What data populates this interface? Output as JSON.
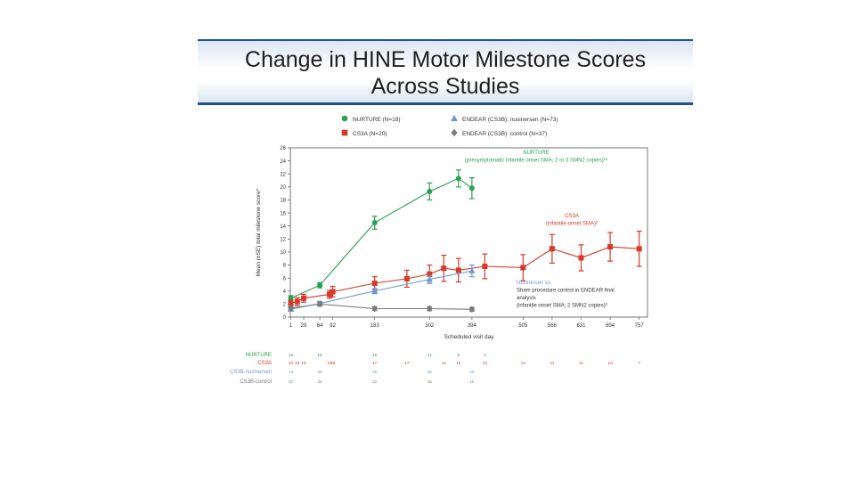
{
  "slide": {
    "title_line1": "Change in HINE Motor Milestone Scores",
    "title_line2": "Across Studies"
  },
  "colors": {
    "NURTURE": "#2aa152",
    "CS3A": "#d63a2a",
    "nusinersen": "#6a9bd0",
    "control": "#7a7a7a",
    "title_rule": "#1d4f9a"
  },
  "chart_data": {
    "type": "line",
    "ylabel": "Mean (±SE) total milestone score*",
    "xlabel": "Scheduled visit day",
    "ylim": [
      0,
      26
    ],
    "yticks": [
      0,
      2,
      4,
      6,
      8,
      10,
      12,
      14,
      16,
      18,
      20,
      22,
      24,
      26
    ],
    "xlim": [
      0,
      775
    ],
    "xticks": [
      1,
      29,
      64,
      92,
      183,
      302,
      394,
      505,
      568,
      631,
      694,
      757
    ],
    "legend": [
      {
        "key": "NURTURE",
        "label": "NURTURE (N=18)",
        "marker": "circle"
      },
      {
        "key": "CS3A",
        "label": "CS3A (N=20)",
        "marker": "square"
      },
      {
        "key": "nusinersen",
        "label": "ENDEAR (CS3B): nusinersen (N=73)",
        "marker": "triangle"
      },
      {
        "key": "control",
        "label": "ENDEAR (CS3B): control (N=37)",
        "marker": "diamond"
      }
    ],
    "series": [
      {
        "key": "NURTURE",
        "name": "NURTURE (N=18)",
        "marker": "circle",
        "points": [
          [
            1,
            2.9,
            0.4
          ],
          [
            64,
            4.9,
            0.4
          ],
          [
            183,
            14.5,
            1.0
          ],
          [
            302,
            19.3,
            1.3
          ],
          [
            365,
            21.3,
            1.3
          ],
          [
            394,
            19.8,
            1.6
          ]
        ]
      },
      {
        "key": "CS3A",
        "name": "CS3A (N=20)",
        "marker": "square",
        "points": [
          [
            1,
            2.1,
            0.5
          ],
          [
            15,
            2.4,
            0.6
          ],
          [
            29,
            2.9,
            0.6
          ],
          [
            85,
            3.5,
            0.6
          ],
          [
            92,
            3.9,
            0.8
          ],
          [
            183,
            5.2,
            1.0
          ],
          [
            253,
            5.9,
            1.3
          ],
          [
            302,
            6.6,
            1.4
          ],
          [
            333,
            7.5,
            2.0
          ],
          [
            365,
            7.2,
            1.8
          ],
          [
            422,
            7.8,
            1.9
          ],
          [
            505,
            7.6,
            2.0
          ],
          [
            568,
            10.5,
            2.2
          ],
          [
            631,
            9.1,
            2.0
          ],
          [
            694,
            10.8,
            2.2
          ],
          [
            757,
            10.5,
            2.7
          ]
        ]
      },
      {
        "key": "nusinersen",
        "name": "ENDEAR (CS3B): nusinersen (N=73)",
        "marker": "triangle",
        "points": [
          [
            1,
            1.2,
            0.2
          ],
          [
            64,
            2.1,
            0.3
          ],
          [
            183,
            4.0,
            0.4
          ],
          [
            302,
            5.8,
            0.6
          ],
          [
            394,
            7.1,
            0.9
          ]
        ]
      },
      {
        "key": "control",
        "name": "ENDEAR (CS3B): control (N=37)",
        "marker": "diamond",
        "points": [
          [
            1,
            1.4,
            0.3
          ],
          [
            64,
            2.0,
            0.3
          ],
          [
            183,
            1.3,
            0.3
          ],
          [
            302,
            1.3,
            0.3
          ],
          [
            394,
            1.2,
            0.3
          ]
        ]
      }
    ],
    "annotations": [
      {
        "key": "NURTURE",
        "lines": [
          "NURTURE",
          "(presymptomatic infantile onset SMA; 2 or 3 SMN2 copies)¹ᵃ"
        ]
      },
      {
        "key": "CS3A",
        "lines": [
          "CS3A",
          "(infantile-onset SMA)²"
        ]
      },
      {
        "key": "nusinersen",
        "lines": [
          "Nusinersen vs.",
          "Sham procedure control in ENDEAR final",
          "analysis",
          "(infantile onset SMA; 2 SMN2 copies)³"
        ]
      }
    ],
    "n_at_risk_table": {
      "rows": [
        {
          "key": "NURTURE",
          "label": "NURTURE",
          "cells": [
            [
              1,
              "18"
            ],
            [
              64,
              "18"
            ],
            [
              183,
              "16"
            ],
            [
              302,
              "11"
            ],
            [
              365,
              "5"
            ],
            [
              422,
              "3"
            ]
          ]
        },
        {
          "key": "CS3A",
          "label": "CS3A",
          "cells": [
            [
              1,
              "20"
            ],
            [
              15,
              "20"
            ],
            [
              29,
              "19"
            ],
            [
              85,
              "19"
            ],
            [
              92,
              "19"
            ],
            [
              183,
              "17"
            ],
            [
              253,
              "17"
            ],
            [
              333,
              "14"
            ],
            [
              365,
              "15"
            ],
            [
              422,
              "10"
            ],
            [
              505,
              "14"
            ],
            [
              568,
              "11"
            ],
            [
              631,
              "11"
            ],
            [
              694,
              "10"
            ],
            [
              757,
              "7"
            ]
          ]
        },
        {
          "key": "nusinersen",
          "label": "CS3B-nusinersen",
          "cells": [
            [
              1,
              "73"
            ],
            [
              64,
              "68"
            ],
            [
              183,
              "55"
            ],
            [
              302,
              "36"
            ],
            [
              394,
              "20"
            ]
          ]
        },
        {
          "key": "control",
          "label": "CS3B-control",
          "cells": [
            [
              1,
              "37"
            ],
            [
              64,
              "30"
            ],
            [
              183,
              "22"
            ],
            [
              302,
              "15"
            ],
            [
              394,
              "11"
            ]
          ]
        }
      ]
    }
  }
}
